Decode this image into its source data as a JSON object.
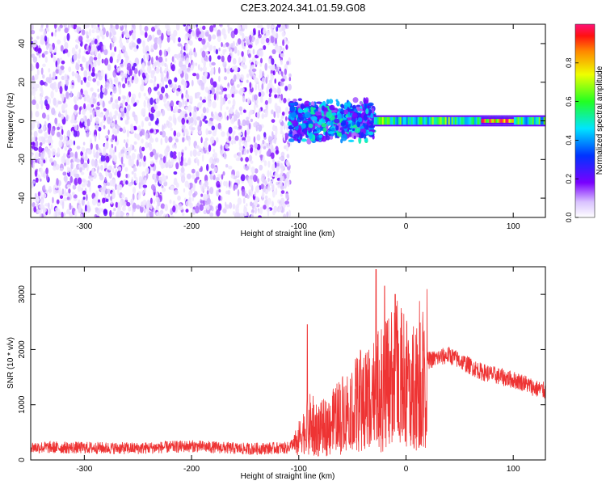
{
  "figure": {
    "title": "C2E3.2024.341.01.59.G08",
    "colors": {
      "snr_line": "#ee3333",
      "axis": "#000000",
      "background": "#ffffff"
    }
  },
  "chart_data": [
    {
      "type": "heatmap",
      "title": "C2E3.2024.341.01.59.G08",
      "xlabel": "Height of straight line (km)",
      "ylabel": "Frequency (Hz)",
      "xlim": [
        -350,
        130
      ],
      "ylim": [
        -50,
        50
      ],
      "xticks": [
        -300,
        -200,
        -100,
        0,
        100
      ],
      "yticks": [
        -40,
        -20,
        0,
        20,
        40
      ],
      "colorbar": {
        "label": "Normalized spectral amplitude",
        "range": [
          0,
          1
        ],
        "ticks": [
          0.0,
          0.2,
          0.4,
          0.6,
          0.8
        ],
        "colormap": "rainbow-white-to-red"
      },
      "regions": [
        {
          "x_range": [
            -350,
            -108
          ],
          "freq_range": [
            -50,
            50
          ],
          "amplitude": 0.05,
          "description_level": "low-noise"
        },
        {
          "x_range": [
            -108,
            -30
          ],
          "freq_range": [
            -12,
            12
          ],
          "amplitude": 0.3
        },
        {
          "x_range": [
            -30,
            130
          ],
          "freq_range": [
            -2,
            2
          ],
          "amplitude": 0.6
        },
        {
          "x_range": [
            70,
            100
          ],
          "freq_range": [
            -1,
            1
          ],
          "amplitude": 0.9
        }
      ],
      "grid": false,
      "legend": "none"
    },
    {
      "type": "line",
      "xlabel": "Height of straight line (km)",
      "ylabel": "SNR (10 * v/v)",
      "xlim": [
        -350,
        130
      ],
      "ylim": [
        0,
        3500
      ],
      "xticks": [
        -300,
        -200,
        -100,
        0,
        100
      ],
      "yticks": [
        0,
        1000,
        2000,
        3000
      ],
      "series": [
        {
          "x": [
            -350,
            -300,
            -250,
            -200,
            -150,
            -110,
            -100,
            -90,
            -80,
            -70,
            -60,
            -50,
            -40,
            -30,
            -20,
            -10,
            0,
            10,
            20,
            30,
            40,
            50,
            60,
            70,
            80,
            90,
            100,
            110,
            120,
            130
          ],
          "y": [
            230,
            220,
            210,
            250,
            200,
            220,
            400,
            700,
            600,
            700,
            900,
            1000,
            1200,
            1300,
            1400,
            1700,
            1500,
            1600,
            1800,
            1850,
            1900,
            1800,
            1700,
            1600,
            1550,
            1500,
            1450,
            1400,
            1300,
            1250
          ]
        }
      ],
      "peaks": [
        {
          "x": -92,
          "y": 2450
        },
        {
          "x": -28,
          "y": 3450
        },
        {
          "x": -20,
          "y": 3150
        },
        {
          "x": -10,
          "y": 3000
        }
      ],
      "grid": false,
      "legend": "none"
    }
  ]
}
